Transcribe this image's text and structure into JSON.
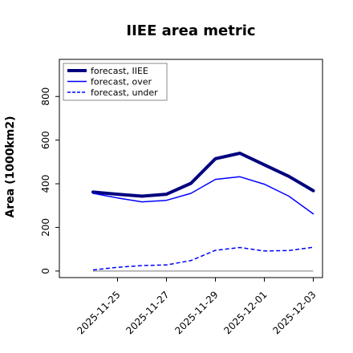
{
  "chart_data": {
    "type": "line",
    "title": "IIEE area metric",
    "xlabel": "",
    "ylabel": "Area (1000km2)",
    "ylim": [
      -30,
      970
    ],
    "yticks": [
      0,
      200,
      400,
      600,
      800
    ],
    "x": [
      "2025-11-24",
      "2025-11-25",
      "2025-11-26",
      "2025-11-27",
      "2025-11-28",
      "2025-11-29",
      "2025-11-30",
      "2025-12-01",
      "2025-12-02",
      "2025-12-03"
    ],
    "xtick_labels": [
      "2025-11-25",
      "2025-11-27",
      "2025-11-29",
      "2025-12-01",
      "2025-12-03"
    ],
    "highlighted_tick": "2025-11-25",
    "highlight_color": "#2e8b2e",
    "grid": false,
    "legend_position": "top-left",
    "series": [
      {
        "name": "forecast, IIEE",
        "color": "#00007f",
        "style": "solid",
        "width": 4,
        "values": [
          362,
          352,
          343,
          352,
          402,
          515,
          540,
          487,
          434,
          368
        ]
      },
      {
        "name": "forecast, over",
        "color": "#0000ff",
        "style": "solid",
        "width": 1.5,
        "values": [
          356,
          335,
          317,
          324,
          356,
          420,
          432,
          398,
          343,
          262
        ]
      },
      {
        "name": "forecast, under",
        "color": "#0000ff",
        "style": "dashed",
        "width": 1.5,
        "values": [
          5,
          17,
          25,
          28,
          48,
          95,
          108,
          92,
          94,
          109
        ]
      }
    ],
    "zero_line": {
      "value": 0,
      "color": "#777777"
    }
  }
}
